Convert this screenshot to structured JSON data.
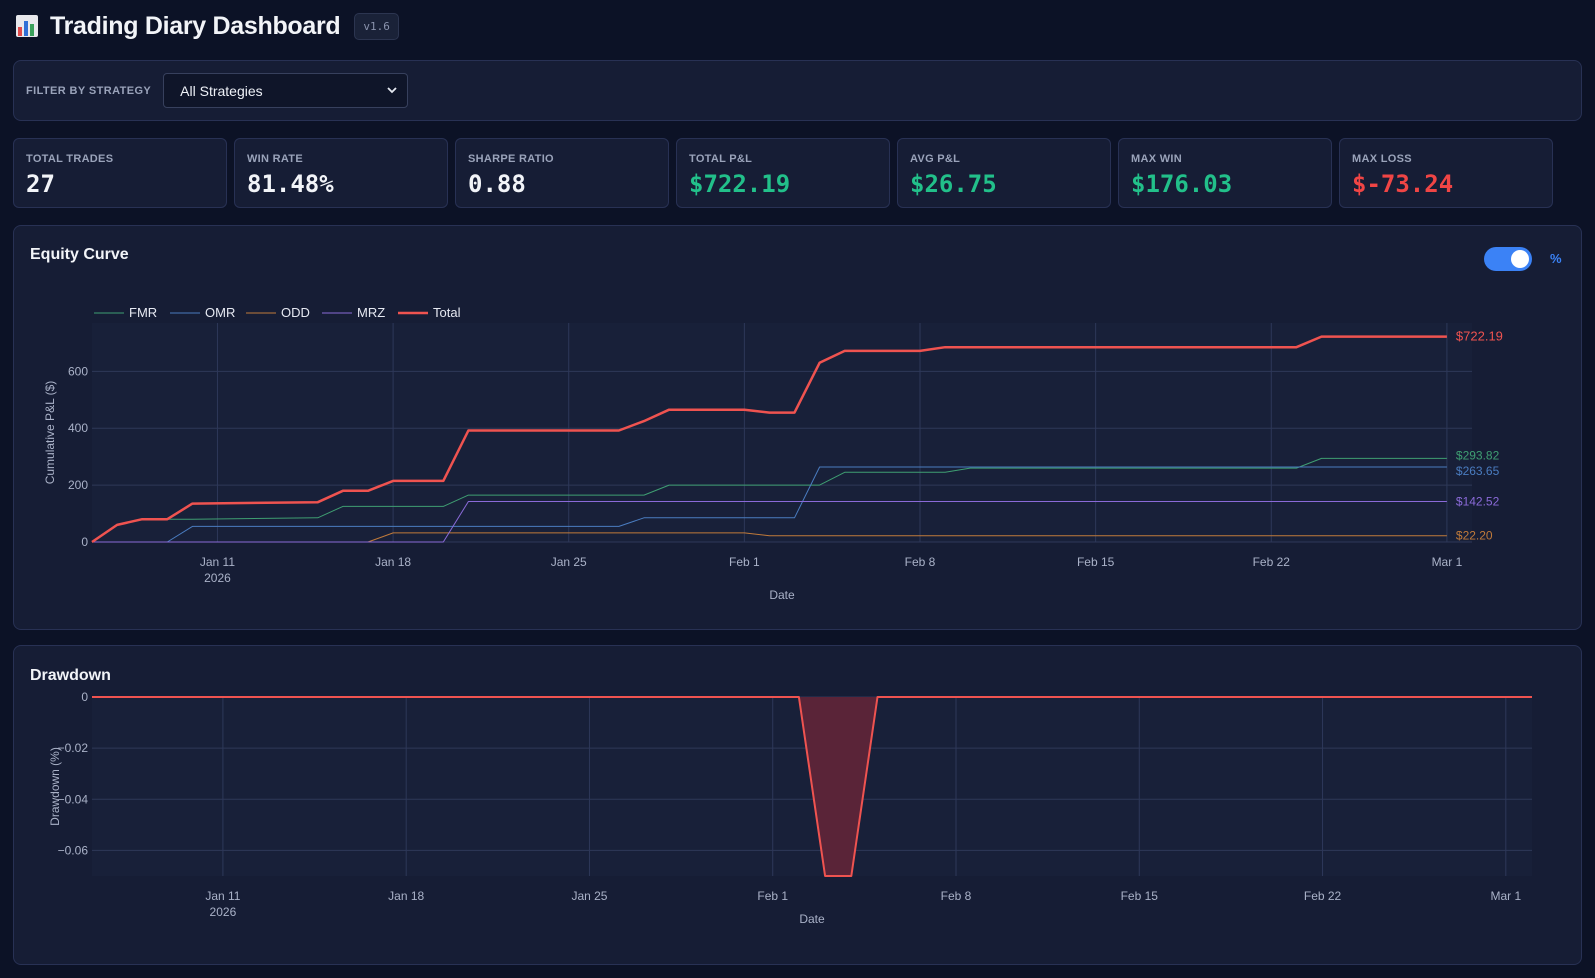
{
  "header": {
    "icon": "bar-chart-icon",
    "title": "Trading Diary Dashboard",
    "version": "v1.6"
  },
  "filter": {
    "label": "Filter by Strategy",
    "selected": "All Strategies",
    "icon": "chevron-down-icon"
  },
  "stats": [
    {
      "label": "Total Trades",
      "value": "27",
      "color": "#f2f4f8"
    },
    {
      "label": "Win Rate",
      "value": "81.48%",
      "color": "#f2f4f8"
    },
    {
      "label": "Sharpe Ratio",
      "value": "0.88",
      "color": "#f2f4f8"
    },
    {
      "label": "Total P&L",
      "value": "$722.19",
      "color": "#22c08a"
    },
    {
      "label": "Avg P&L",
      "value": "$26.75",
      "color": "#22c08a"
    },
    {
      "label": "Max Win",
      "value": "$176.03",
      "color": "#22c08a"
    },
    {
      "label": "Max Loss",
      "value": "$-73.24",
      "color": "#f04545"
    }
  ],
  "equity": {
    "title": "Equity Curve",
    "toggle_label": "%",
    "toggle_on": true
  },
  "drawdown": {
    "title": "Drawdown"
  },
  "chart_data": [
    {
      "type": "line",
      "xlabel": "Date",
      "ylabel": "Cumulative P&L ($)",
      "xlim": [
        "2026-01-06",
        "2026-03-02"
      ],
      "ylim": [
        0,
        770
      ],
      "yticks": [
        0,
        200,
        400,
        600
      ],
      "xticks": [
        {
          "date": "2026-01-11",
          "label": "Jan 11",
          "sub": "2026"
        },
        {
          "date": "2026-01-18",
          "label": "Jan 18"
        },
        {
          "date": "2026-01-25",
          "label": "Jan 25"
        },
        {
          "date": "2026-02-01",
          "label": "Feb 1"
        },
        {
          "date": "2026-02-08",
          "label": "Feb 8"
        },
        {
          "date": "2026-02-15",
          "label": "Feb 15"
        },
        {
          "date": "2026-02-22",
          "label": "Feb 22"
        },
        {
          "date": "2026-03-01",
          "label": "Mar 1"
        }
      ],
      "grid": true,
      "legend": "top-left",
      "series": [
        {
          "name": "FMR",
          "color": "#3f9e72",
          "width": 1,
          "end_label": "$293.82",
          "points": [
            [
              "2026-01-06",
              0
            ],
            [
              "2026-01-07",
              60
            ],
            [
              "2026-01-08",
              80
            ],
            [
              "2026-01-09",
              80
            ],
            [
              "2026-01-10",
              80
            ],
            [
              "2026-01-15",
              85
            ],
            [
              "2026-01-16",
              125
            ],
            [
              "2026-01-20",
              125
            ],
            [
              "2026-01-21",
              165
            ],
            [
              "2026-01-28",
              165
            ],
            [
              "2026-01-29",
              200
            ],
            [
              "2026-02-04",
              200
            ],
            [
              "2026-02-05",
              245
            ],
            [
              "2026-02-09",
              245
            ],
            [
              "2026-02-10",
              260
            ],
            [
              "2026-02-23",
              260
            ],
            [
              "2026-02-24",
              293.82
            ],
            [
              "2026-03-01",
              293.82
            ]
          ]
        },
        {
          "name": "OMR",
          "color": "#4a7cc0",
          "width": 1,
          "end_label": "$263.65",
          "points": [
            [
              "2026-01-06",
              0
            ],
            [
              "2026-01-09",
              0
            ],
            [
              "2026-01-10",
              55
            ],
            [
              "2026-01-27",
              55
            ],
            [
              "2026-01-28",
              85
            ],
            [
              "2026-02-03",
              85
            ],
            [
              "2026-02-04",
              263.65
            ],
            [
              "2026-03-01",
              263.65
            ]
          ]
        },
        {
          "name": "ODD",
          "color": "#c07a3a",
          "width": 1,
          "end_label": "$22.20",
          "points": [
            [
              "2026-01-06",
              0
            ],
            [
              "2026-01-17",
              0
            ],
            [
              "2026-01-18",
              32
            ],
            [
              "2026-02-01",
              32
            ],
            [
              "2026-02-02",
              22.2
            ],
            [
              "2026-03-01",
              22.2
            ]
          ]
        },
        {
          "name": "MRZ",
          "color": "#8a6ad8",
          "width": 1,
          "end_label": "$142.52",
          "points": [
            [
              "2026-01-06",
              0
            ],
            [
              "2026-01-20",
              0
            ],
            [
              "2026-01-21",
              142.52
            ],
            [
              "2026-03-01",
              142.52
            ]
          ]
        },
        {
          "name": "Total",
          "color": "#ef5350",
          "width": 2.5,
          "end_label": "$722.19",
          "points": [
            [
              "2026-01-06",
              0
            ],
            [
              "2026-01-07",
              60
            ],
            [
              "2026-01-08",
              80
            ],
            [
              "2026-01-09",
              80
            ],
            [
              "2026-01-10",
              135
            ],
            [
              "2026-01-15",
              140
            ],
            [
              "2026-01-16",
              180
            ],
            [
              "2026-01-17",
              180
            ],
            [
              "2026-01-18",
              215
            ],
            [
              "2026-01-20",
              215
            ],
            [
              "2026-01-21",
              392
            ],
            [
              "2026-01-27",
              392
            ],
            [
              "2026-01-28",
              425
            ],
            [
              "2026-01-29",
              465
            ],
            [
              "2026-02-01",
              465
            ],
            [
              "2026-02-02",
              455
            ],
            [
              "2026-02-03",
              455
            ],
            [
              "2026-02-04",
              630
            ],
            [
              "2026-02-05",
              672
            ],
            [
              "2026-02-08",
              672
            ],
            [
              "2026-02-09",
              685
            ],
            [
              "2026-02-23",
              685
            ],
            [
              "2026-02-24",
              722.19
            ],
            [
              "2026-03-01",
              722.19
            ]
          ]
        }
      ]
    },
    {
      "type": "area",
      "xlabel": "Date",
      "ylabel": "Drawdown (%)",
      "xlim": [
        "2026-01-06",
        "2026-03-02"
      ],
      "ylim": [
        -0.07,
        0
      ],
      "yticks": [
        0,
        -0.02,
        -0.04,
        -0.06
      ],
      "ytick_labels": [
        "0",
        "−0.02",
        "−0.04",
        "−0.06"
      ],
      "xticks": [
        {
          "date": "2026-01-11",
          "label": "Jan 11",
          "sub": "2026"
        },
        {
          "date": "2026-01-18",
          "label": "Jan 18"
        },
        {
          "date": "2026-01-25",
          "label": "Jan 25"
        },
        {
          "date": "2026-02-01",
          "label": "Feb 1"
        },
        {
          "date": "2026-02-08",
          "label": "Feb 8"
        },
        {
          "date": "2026-02-15",
          "label": "Feb 15"
        },
        {
          "date": "2026-02-22",
          "label": "Feb 22"
        },
        {
          "date": "2026-03-01",
          "label": "Mar 1"
        }
      ],
      "grid": true,
      "series": [
        {
          "color": "#ef5350",
          "fill": "#5a2438",
          "points": [
            [
              "2026-01-06",
              0
            ],
            [
              "2026-02-02",
              0
            ],
            [
              "2026-02-03",
              -0.07
            ],
            [
              "2026-02-04",
              -0.07
            ],
            [
              "2026-02-05",
              0
            ],
            [
              "2026-03-02",
              0
            ]
          ]
        }
      ]
    }
  ]
}
